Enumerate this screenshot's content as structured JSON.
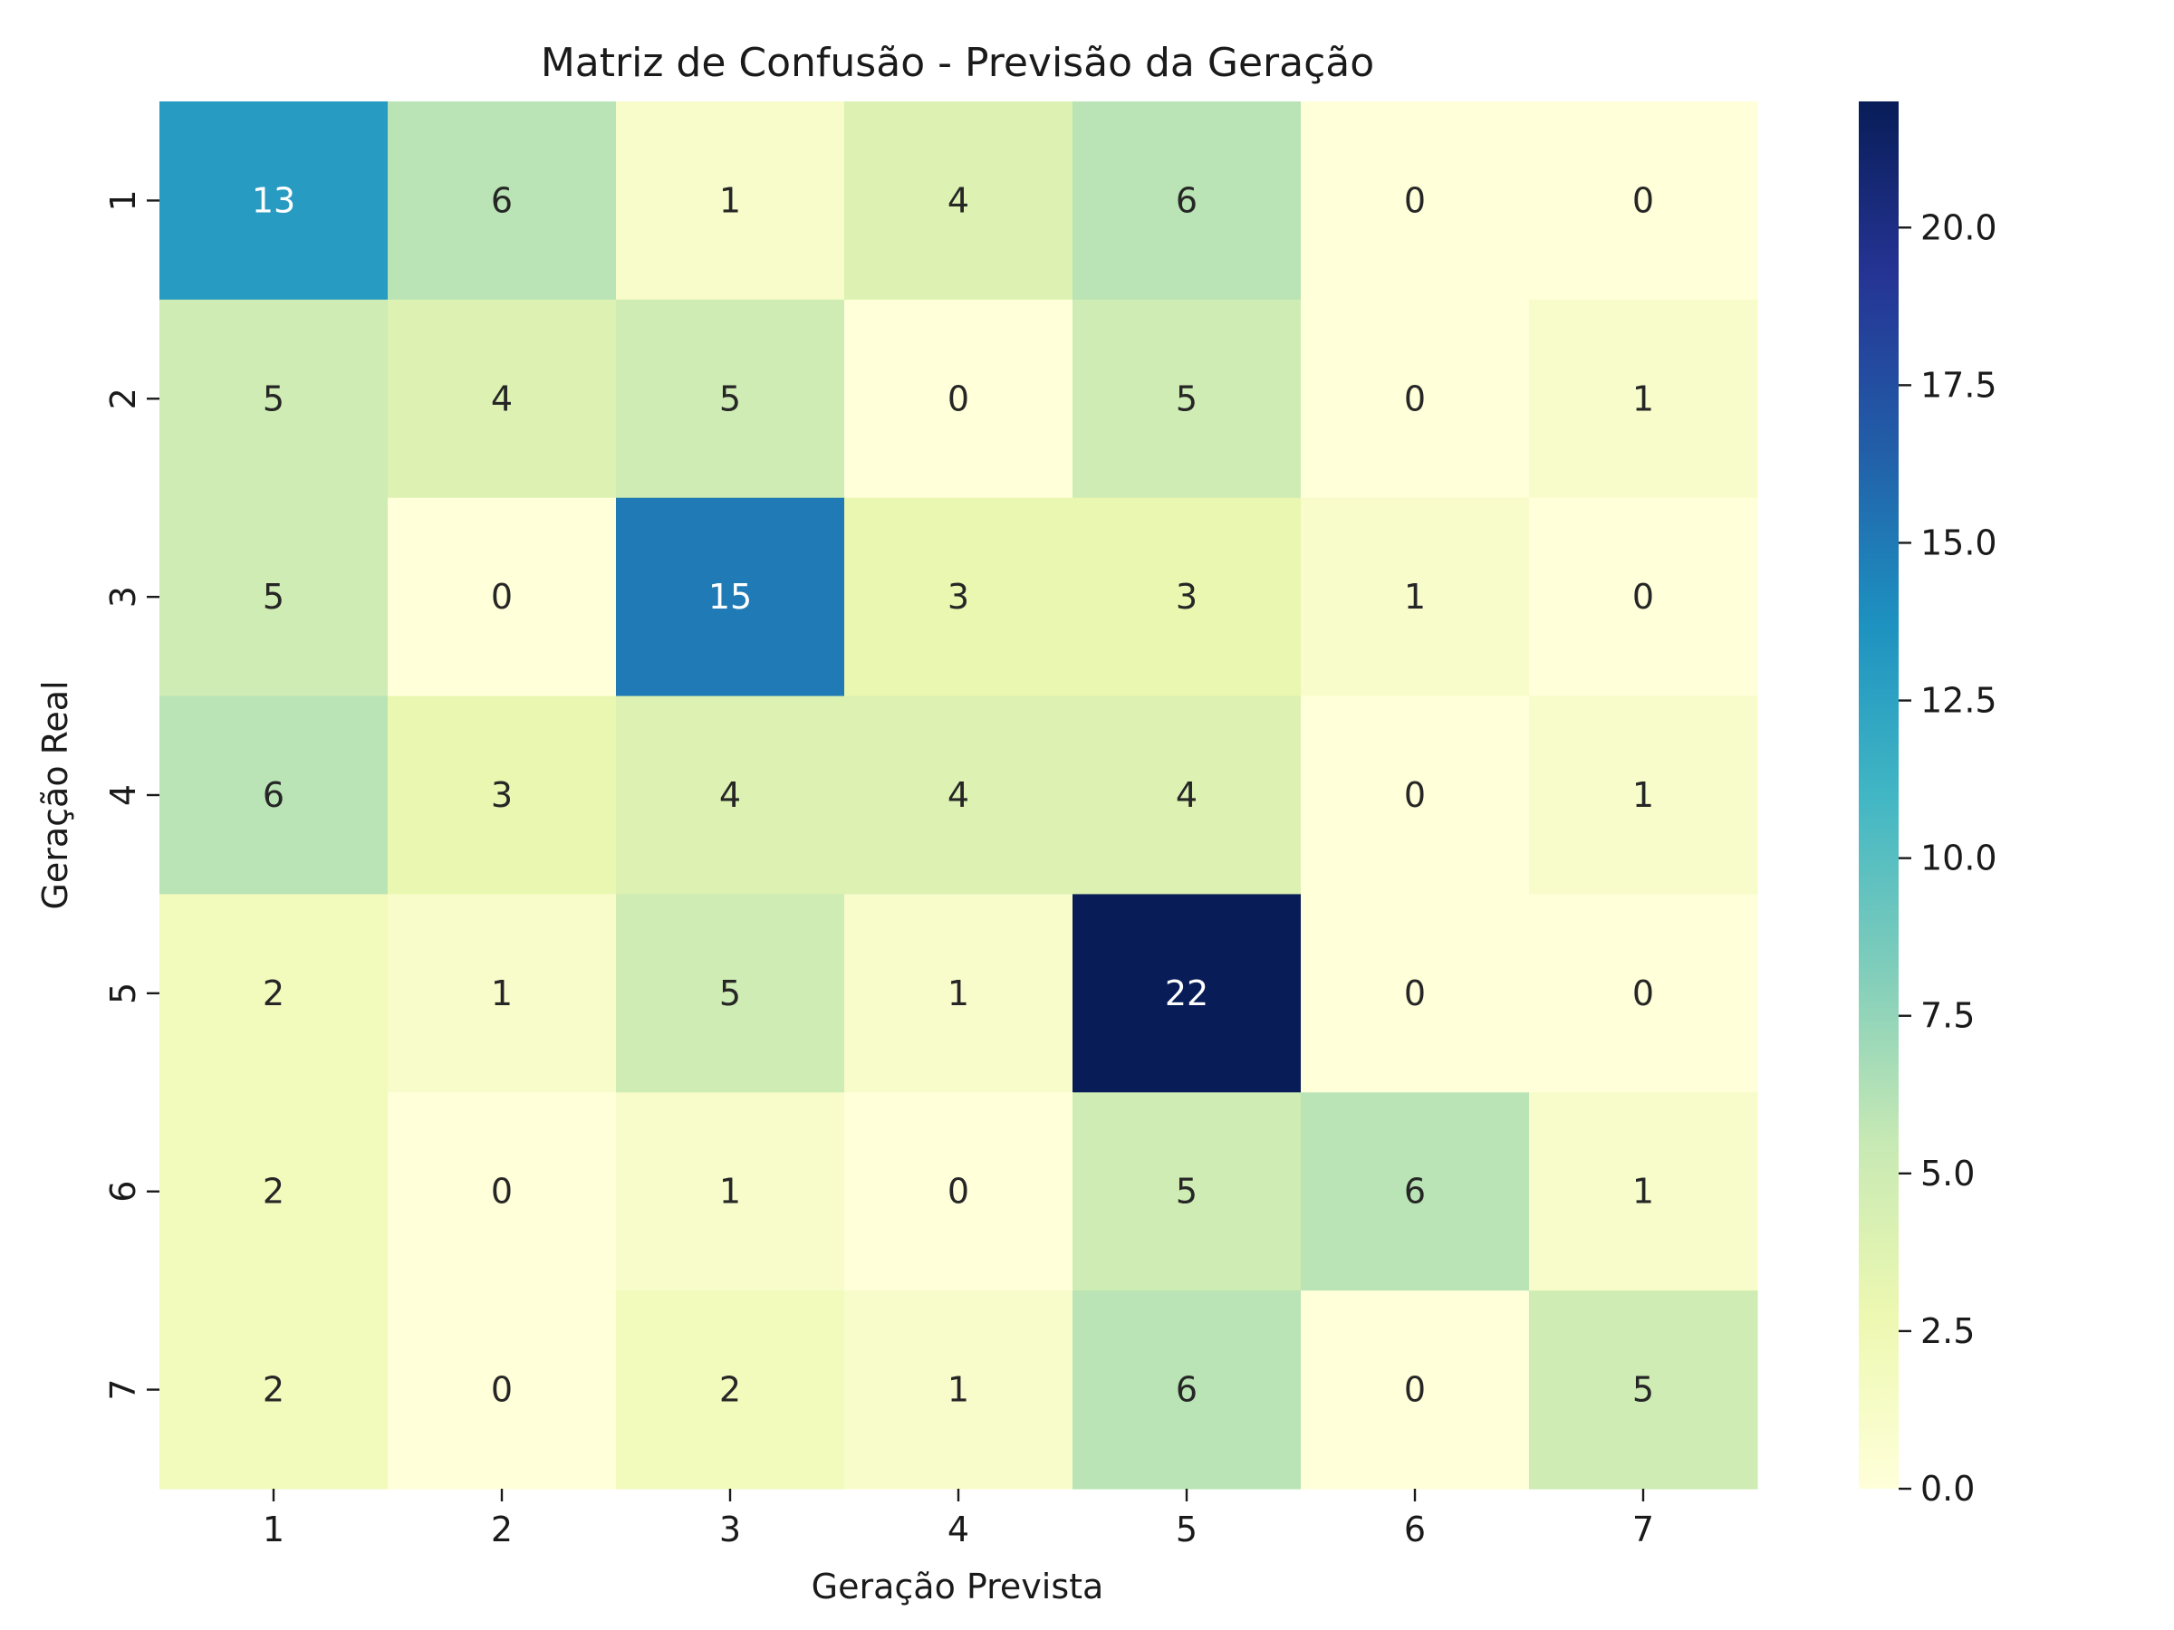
{
  "chart_data": {
    "type": "heatmap",
    "title": "Matriz de Confusão - Previsão da Geração",
    "xlabel": "Geração Prevista",
    "ylabel": "Geração Real",
    "x_categories": [
      "1",
      "2",
      "3",
      "4",
      "5",
      "6",
      "7"
    ],
    "y_categories": [
      "1",
      "2",
      "3",
      "4",
      "5",
      "6",
      "7"
    ],
    "values": [
      [
        13,
        6,
        1,
        4,
        6,
        0,
        0
      ],
      [
        5,
        4,
        5,
        0,
        5,
        0,
        1
      ],
      [
        5,
        0,
        15,
        3,
        3,
        1,
        0
      ],
      [
        6,
        3,
        4,
        4,
        4,
        0,
        1
      ],
      [
        2,
        1,
        5,
        1,
        22,
        0,
        0
      ],
      [
        2,
        0,
        1,
        0,
        5,
        6,
        1
      ],
      [
        2,
        0,
        2,
        1,
        6,
        0,
        5
      ]
    ],
    "colorbar": {
      "colormap": "YlGnBu",
      "vmin": 0,
      "vmax": 22,
      "ticks": [
        0,
        2.5,
        5,
        7.5,
        10,
        12.5,
        15,
        17.5,
        20
      ],
      "tick_labels": [
        "0.0",
        "2.5",
        "5.0",
        "7.5",
        "10.0",
        "12.5",
        "15.0",
        "17.5",
        "20.0"
      ]
    },
    "colormap_stops": [
      "#ffffd9",
      "#edf8b1",
      "#c7e9b4",
      "#7fcdbb",
      "#41b6c4",
      "#1d91c0",
      "#225ea8",
      "#253494",
      "#081d58"
    ],
    "annotation_colors": {
      "dark_text": "#262626",
      "light_text": "#ffffff"
    }
  }
}
